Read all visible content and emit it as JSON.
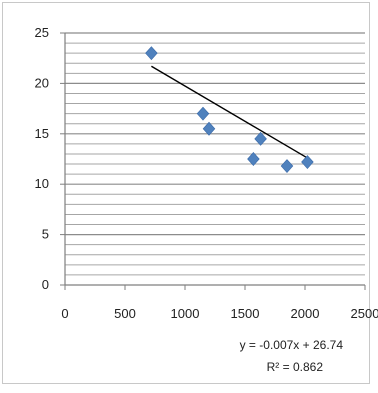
{
  "chart_data": {
    "type": "scatter",
    "title": "",
    "xlabel": "",
    "ylabel": "",
    "xlim": [
      0,
      2500
    ],
    "ylim": [
      0,
      25
    ],
    "x_ticks": [
      0,
      500,
      1000,
      1500,
      2000,
      2500
    ],
    "y_ticks": [
      0,
      5,
      10,
      15,
      20,
      25
    ],
    "grid": "horizontal, minor",
    "legend": "none",
    "series": [
      {
        "marker_color": "#4f81bd",
        "points": [
          {
            "x": 720,
            "y": 23.0
          },
          {
            "x": 1150,
            "y": 17.0
          },
          {
            "x": 1200,
            "y": 15.5
          },
          {
            "x": 1570,
            "y": 12.5
          },
          {
            "x": 1630,
            "y": 14.5
          },
          {
            "x": 1850,
            "y": 11.8
          },
          {
            "x": 2020,
            "y": 12.2
          }
        ]
      }
    ],
    "trendline": {
      "type": "linear",
      "slope": -0.007,
      "intercept": 26.74,
      "x_range": [
        720,
        2030
      ],
      "equation_label": "y = -0.007x + 26.74",
      "r2_label": "R² = 0.862",
      "color": "#000000"
    }
  }
}
